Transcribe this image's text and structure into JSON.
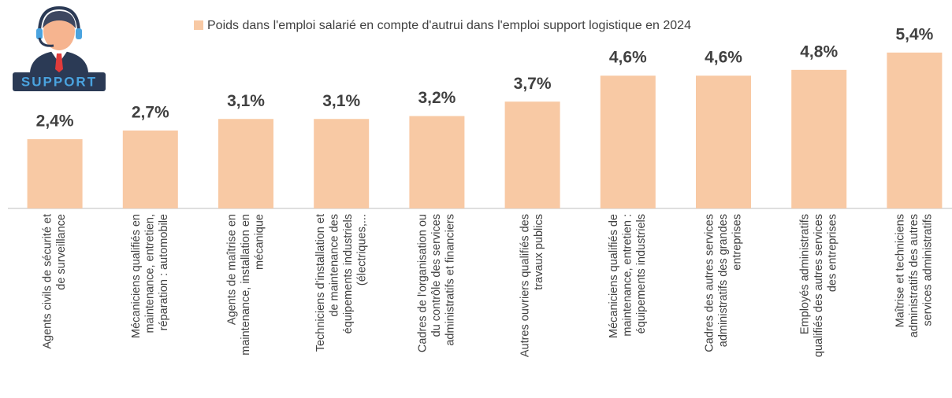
{
  "icon": {
    "label": "SUPPORT"
  },
  "chart_data": {
    "type": "bar",
    "legend": "Poids dans l'emploi salarié en compte d'autrui dans l'emploi support logistique en 2024",
    "color": "#f8c9a4",
    "categories": [
      [
        "Agents civils de sécurité et",
        "de surveillance"
      ],
      [
        "Mécaniciens qualifiés en",
        "maintenance, entretien,",
        "réparation : automobile"
      ],
      [
        "Agents de maîtrise en",
        "maintenance, installation en",
        "mécanique"
      ],
      [
        "Techniciens d'installation et",
        "de maintenance des",
        "équipements industriels",
        "(électriques,..."
      ],
      [
        "Cadres de l'organisation ou",
        "du contrôle des services",
        "administratifs et financiers"
      ],
      [
        "Autres ouvriers qualifiés des",
        "travaux publics"
      ],
      [
        "Mécaniciens qualifiés de",
        "maintenance, entretien :",
        "équipements industriels"
      ],
      [
        "Cadres des autres services",
        "administratifs des grandes",
        "entreprises"
      ],
      [
        "Employés administratifs",
        "qualifiés des autres services",
        "des entreprises"
      ],
      [
        "Maîtrise et techniciens",
        "administratifs des autres",
        "services administratifs"
      ]
    ],
    "values": [
      2.4,
      2.7,
      3.1,
      3.1,
      3.2,
      3.7,
      4.6,
      4.6,
      4.8,
      5.4
    ],
    "value_labels": [
      "2,4%",
      "2,7%",
      "3,1%",
      "3,1%",
      "3,2%",
      "3,7%",
      "4,6%",
      "4,6%",
      "4,8%",
      "5,4%"
    ]
  }
}
